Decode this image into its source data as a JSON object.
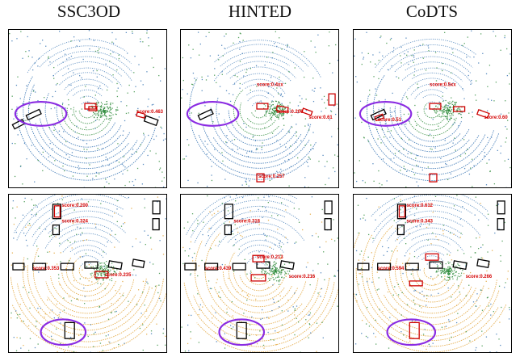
{
  "columns": [
    "SSC3OD",
    "HINTED",
    "CoDTS"
  ],
  "colors": {
    "gt_box": "#000000",
    "pred_box": "#cc0000",
    "highlight_ellipse": "#8a2be2",
    "points_green": "#2e8b3a",
    "points_blue": "#2f6fb0",
    "points_orange": "#e0a030"
  },
  "rows": [
    {
      "panels": [
        {
          "scores": [
            {
              "id": 0,
              "text": "score:0.463"
            }
          ]
        },
        {
          "scores": [
            {
              "id": 1,
              "text": "score:0.4xx"
            },
            {
              "id": 2,
              "text": "score:0.61"
            },
            {
              "id": 3,
              "text": "score:0.206"
            },
            {
              "id": 4,
              "text": "score:0.257"
            }
          ]
        },
        {
          "scores": [
            {
              "id": 5,
              "text": "score:0.5xx"
            },
            {
              "id": 6,
              "text": "score:0.51"
            },
            {
              "id": 7,
              "text": "score:0.60"
            }
          ]
        }
      ]
    },
    {
      "panels": [
        {
          "scores": [
            {
              "id": 0,
              "text": "score:0.200"
            },
            {
              "id": 1,
              "text": "score:0.324"
            },
            {
              "id": 2,
              "text": "score:0.353"
            },
            {
              "id": 3,
              "text": "score:0.235"
            }
          ]
        },
        {
          "scores": [
            {
              "id": 4,
              "text": "score:0.318"
            },
            {
              "id": 5,
              "text": "score:0.213"
            },
            {
              "id": 6,
              "text": "score:0.439"
            },
            {
              "id": 7,
              "text": "score:0.216"
            }
          ]
        },
        {
          "scores": [
            {
              "id": 8,
              "text": "score:0.612"
            },
            {
              "id": 9,
              "text": "score:0.343"
            },
            {
              "id": 10,
              "text": "score:0.594"
            },
            {
              "id": 11,
              "text": "score:0.266"
            }
          ]
        }
      ]
    }
  ]
}
